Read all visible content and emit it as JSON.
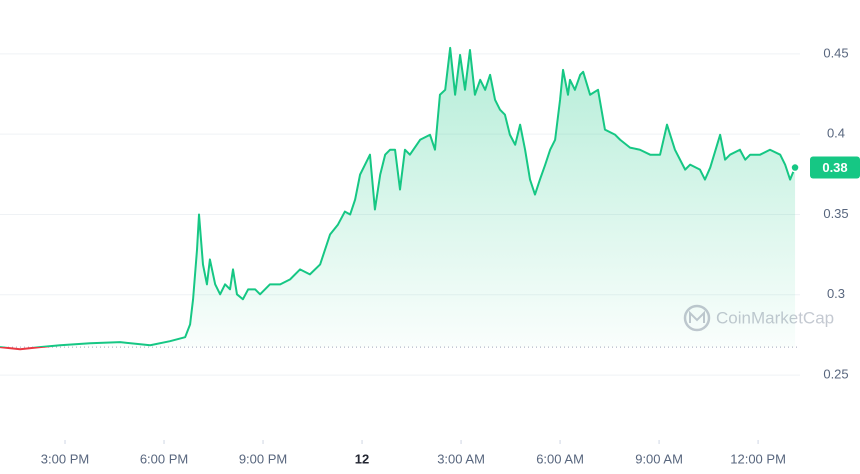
{
  "chart_data": {
    "type": "line",
    "watermark": "CoinMarketCap",
    "current_label": "0.38",
    "color_up": "#16c784",
    "color_down": "#ea3943",
    "baseline": 0.2674,
    "grid": true,
    "xlim": [
      13.03,
      37.27
    ],
    "ylim": [
      0.2096,
      0.4835
    ],
    "xticks": [
      {
        "value": 15,
        "label": "3:00 PM"
      },
      {
        "value": 18,
        "label": "6:00 PM"
      },
      {
        "value": 21,
        "label": "9:00 PM"
      },
      {
        "value": 24,
        "label": "12"
      },
      {
        "value": 27,
        "label": "3:00 AM"
      },
      {
        "value": 30,
        "label": "6:00 AM"
      },
      {
        "value": 33,
        "label": "9:00 AM"
      },
      {
        "value": 36,
        "label": "12:00 PM"
      }
    ],
    "yticks": [
      0.25,
      0.3,
      0.35,
      0.4,
      0.45
    ],
    "x": [
      13.03,
      13.64,
      14.24,
      14.85,
      15.76,
      16.67,
      17.58,
      18.18,
      18.64,
      18.79,
      18.88,
      19.0,
      19.06,
      19.18,
      19.3,
      19.39,
      19.55,
      19.7,
      19.85,
      20.0,
      20.09,
      20.21,
      20.39,
      20.55,
      20.76,
      20.91,
      21.21,
      21.52,
      21.82,
      22.12,
      22.42,
      22.73,
      23.03,
      23.27,
      23.48,
      23.64,
      23.79,
      23.94,
      24.09,
      24.24,
      24.39,
      24.55,
      24.7,
      24.85,
      25.0,
      25.15,
      25.3,
      25.45,
      25.76,
      26.06,
      26.21,
      26.36,
      26.52,
      26.67,
      26.82,
      26.97,
      27.12,
      27.27,
      27.42,
      27.58,
      27.73,
      27.88,
      28.03,
      28.18,
      28.33,
      28.48,
      28.64,
      28.79,
      28.94,
      29.09,
      29.24,
      29.39,
      29.55,
      29.7,
      29.85,
      30.0,
      30.09,
      30.24,
      30.3,
      30.45,
      30.61,
      30.7,
      30.91,
      31.15,
      31.36,
      31.67,
      31.82,
      32.12,
      32.42,
      32.73,
      33.03,
      33.24,
      33.48,
      33.79,
      33.94,
      34.24,
      34.39,
      34.55,
      34.85,
      35.0,
      35.15,
      35.45,
      35.61,
      35.76,
      36.06,
      36.36,
      36.67,
      36.82,
      36.97,
      37.12
    ],
    "values": [
      0.2674,
      0.2661,
      0.2674,
      0.2686,
      0.2698,
      0.2705,
      0.2686,
      0.2711,
      0.2736,
      0.2816,
      0.2972,
      0.3282,
      0.35,
      0.3189,
      0.3065,
      0.322,
      0.3065,
      0.3003,
      0.3065,
      0.3034,
      0.3158,
      0.3003,
      0.2972,
      0.3034,
      0.3034,
      0.3003,
      0.3065,
      0.3065,
      0.3096,
      0.3158,
      0.3127,
      0.3189,
      0.3375,
      0.3437,
      0.3518,
      0.35,
      0.3593,
      0.3748,
      0.381,
      0.3872,
      0.3531,
      0.3748,
      0.3872,
      0.3903,
      0.3903,
      0.3655,
      0.3903,
      0.3872,
      0.3965,
      0.3996,
      0.3903,
      0.4245,
      0.4276,
      0.4537,
      0.4245,
      0.4493,
      0.4276,
      0.4524,
      0.4245,
      0.4338,
      0.4276,
      0.4369,
      0.4214,
      0.4152,
      0.4121,
      0.3996,
      0.3934,
      0.4059,
      0.3903,
      0.3717,
      0.3624,
      0.3717,
      0.381,
      0.3903,
      0.3965,
      0.4214,
      0.44,
      0.4245,
      0.4338,
      0.4276,
      0.4369,
      0.4388,
      0.4245,
      0.4276,
      0.4028,
      0.3996,
      0.3965,
      0.3916,
      0.3903,
      0.3872,
      0.3872,
      0.4059,
      0.3903,
      0.3779,
      0.381,
      0.3779,
      0.3717,
      0.3792,
      0.3996,
      0.3841,
      0.3872,
      0.3903,
      0.3841,
      0.3872,
      0.3872,
      0.3903,
      0.3872,
      0.381,
      0.3717,
      0.3792
    ]
  }
}
